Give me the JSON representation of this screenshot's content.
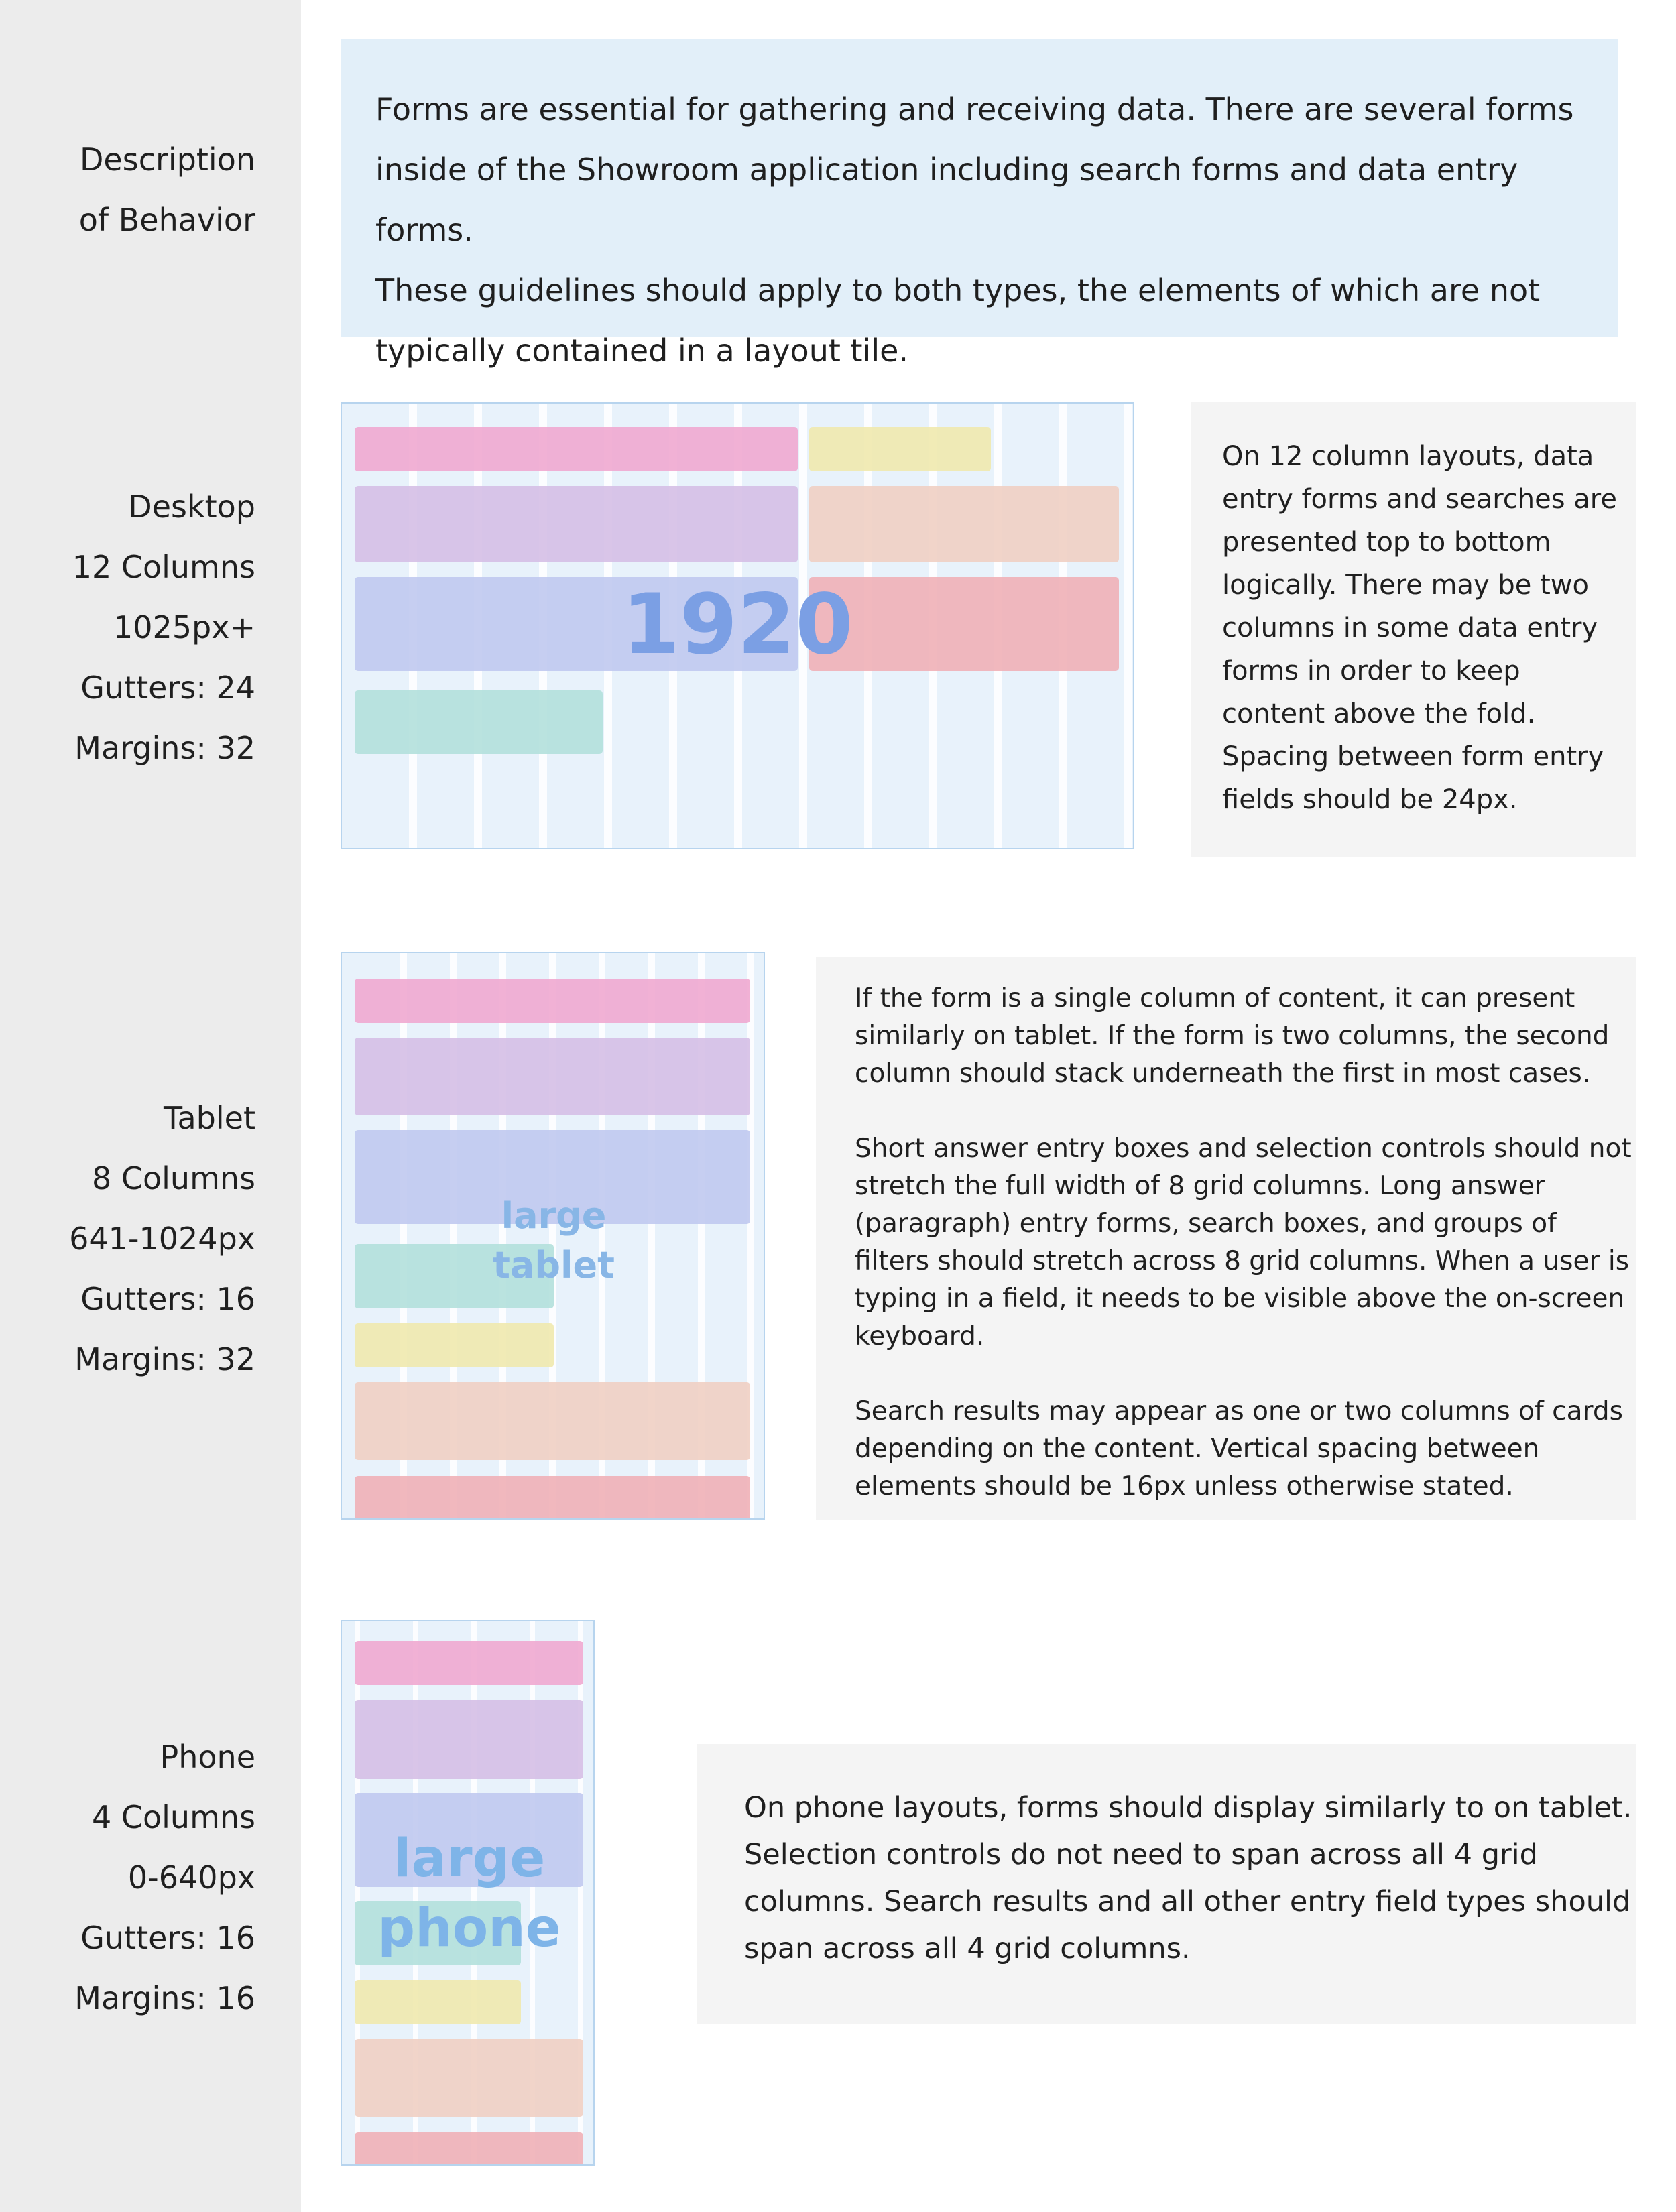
{
  "description": {
    "label": [
      "Description",
      "of Behavior"
    ],
    "text": [
      "Forms are essential for gathering and receiving data. There are several forms",
      "inside of the Showroom application including search forms and data entry forms.",
      "These guidelines should apply to both types, the elements of which are not",
      "typically contained in a layout tile."
    ]
  },
  "desktop": {
    "label": [
      "Desktop",
      "12 Columns",
      "1025px+",
      "Gutters: 24",
      "Margins: 32"
    ],
    "watermark": "1920",
    "text": [
      "On 12 column layouts, data",
      "entry forms and searches are",
      "presented top to bottom",
      "logically. There may be two",
      "columns in some data entry",
      "forms in order to keep",
      "content above the fold.",
      "Spacing between form entry",
      "fields should be 24px."
    ]
  },
  "tablet": {
    "label": [
      "Tablet",
      "8 Columns",
      "641-1024px",
      "Gutters: 16",
      "Margins: 32"
    ],
    "watermark": [
      "large",
      "tablet"
    ],
    "paragraphs": [
      [
        "If the form is a single column of content, it can present",
        "similarly on tablet. If the form is two columns, the second",
        "column should stack underneath the first in most cases."
      ],
      [
        "Short answer entry boxes and selection controls should not",
        "stretch the full width of 8 grid columns. Long answer",
        "(paragraph) entry forms, search boxes, and groups of",
        "filters should stretch across 8 grid columns. When a user is",
        "typing in a field, it needs to be visible above the on-screen",
        "keyboard."
      ],
      [
        "Search results may appear as one or two columns of cards",
        "depending on the content. Vertical spacing between",
        "elements should be 16px unless otherwise stated."
      ]
    ]
  },
  "phone": {
    "label": [
      "Phone",
      "4 Columns",
      "0-640px",
      "Gutters: 16",
      "Margins: 16"
    ],
    "watermark": [
      "large",
      "phone"
    ],
    "text": [
      "On phone layouts, forms should display similarly to on tablet.",
      "Selection controls do not need to span across all 4 grid",
      "columns. Search results and all other entry field types should",
      "span across all 4 grid columns."
    ]
  },
  "colors": {
    "sidebar": "#ececec",
    "blue_panel": "#e2eff9",
    "gray_panel": "#f4f4f4",
    "grid_bg": "#e8f2fb",
    "pink": "#f0a8d0",
    "yellow": "#f0e9ae",
    "lavender": "#d5bfe6",
    "peach": "#f0cfc3",
    "periwinkle": "#c0c9ef",
    "red": "#f0b0b7",
    "teal": "#b2e0dc",
    "watermark_desktop": "#7b9fe4",
    "watermark_tablet": "#88b6e6",
    "watermark_phone": "#7eb4e8"
  }
}
